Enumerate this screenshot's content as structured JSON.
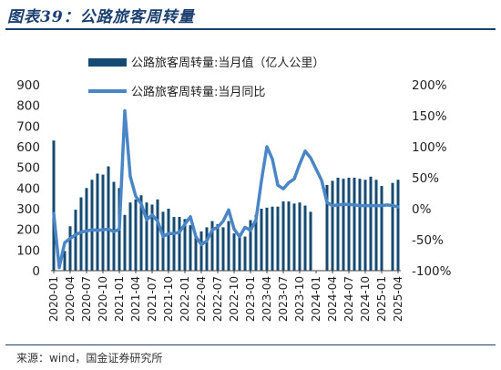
{
  "figure": {
    "title": "图表39：公路旅客周转量",
    "source": "来源：wind，国金证券研究所"
  },
  "colors": {
    "bar": "#154a72",
    "line": "#4a86c5",
    "rule": "#1b3f6e"
  },
  "chart_data": {
    "type": "bar+line",
    "title": "",
    "legend_position": "top-center",
    "grid": false,
    "x_tick_labels": [
      "2020-01",
      "2020-04",
      "2020-07",
      "2020-10",
      "2021-01",
      "2021-04",
      "2021-07",
      "2021-10",
      "2022-01",
      "2022-04",
      "2022-07",
      "2022-10",
      "2023-01",
      "2023-04",
      "2023-07",
      "2023-10",
      "2024-01",
      "2024-04",
      "2024-07",
      "2024-10",
      "2025-01",
      "2025-04"
    ],
    "y_left": {
      "ylim": [
        0,
        900
      ],
      "ticks": [
        "0",
        "100",
        "200",
        "300",
        "400",
        "500",
        "600",
        "700",
        "800",
        "900"
      ]
    },
    "y_right": {
      "ylim": [
        -100,
        200
      ],
      "ticks": [
        "-100%",
        "-50%",
        "0%",
        "50%",
        "100%",
        "150%",
        "200%"
      ]
    },
    "x": [
      "2020-01",
      "2020-02",
      "2020-03",
      "2020-04",
      "2020-05",
      "2020-06",
      "2020-07",
      "2020-08",
      "2020-09",
      "2020-10",
      "2020-11",
      "2020-12",
      "2021-01",
      "2021-02",
      "2021-03",
      "2021-04",
      "2021-05",
      "2021-06",
      "2021-07",
      "2021-08",
      "2021-09",
      "2021-10",
      "2021-11",
      "2021-12",
      "2022-01",
      "2022-02",
      "2022-03",
      "2022-04",
      "2022-05",
      "2022-06",
      "2022-07",
      "2022-08",
      "2022-09",
      "2022-10",
      "2022-11",
      "2022-12",
      "2023-01",
      "2023-02",
      "2023-03",
      "2023-04",
      "2023-05",
      "2023-06",
      "2023-07",
      "2023-08",
      "2023-09",
      "2023-10",
      "2023-11",
      "2023-12",
      "2024-01",
      "2024-02",
      "2024-03",
      "2024-04",
      "2024-05",
      "2024-06",
      "2024-07",
      "2024-08",
      "2024-09",
      "2024-10",
      "2024-11",
      "2024-12",
      "2025-01",
      "2025-02",
      "2025-03",
      "2025-04"
    ],
    "series": [
      {
        "name": "公路旅客周转量:当月值（亿人公里）",
        "type": "bar",
        "axis": "left",
        "values": [
          630,
          null,
          95,
          215,
          295,
          355,
          400,
          440,
          470,
          465,
          505,
          430,
          400,
          270,
          330,
          345,
          365,
          330,
          320,
          345,
          285,
          300,
          260,
          260,
          250,
          220,
          170,
          190,
          210,
          240,
          225,
          210,
          240,
          180,
          170,
          165,
          245,
          270,
          300,
          305,
          310,
          310,
          335,
          335,
          325,
          330,
          315,
          285,
          null,
          null,
          415,
          435,
          450,
          445,
          450,
          450,
          445,
          440,
          455,
          440,
          410,
          null,
          425,
          440
        ]
      },
      {
        "name": "公路旅客周转量:当月同比",
        "type": "line",
        "axis": "right",
        "values": [
          -8,
          -95,
          -55,
          -48,
          -42,
          -38,
          -36,
          -34,
          -35,
          -34,
          -33,
          -37,
          -33,
          158,
          52,
          20,
          8,
          -18,
          -10,
          -20,
          -45,
          -40,
          -40,
          -38,
          -25,
          -13,
          -45,
          -58,
          -52,
          -34,
          -30,
          -20,
          -2,
          -33,
          -45,
          -30,
          -35,
          -18,
          45,
          100,
          80,
          38,
          32,
          42,
          48,
          72,
          93,
          82,
          64,
          46,
          10,
          5,
          6,
          7,
          7,
          6,
          5,
          5,
          5,
          5,
          5,
          6,
          5,
          3
        ]
      }
    ]
  }
}
